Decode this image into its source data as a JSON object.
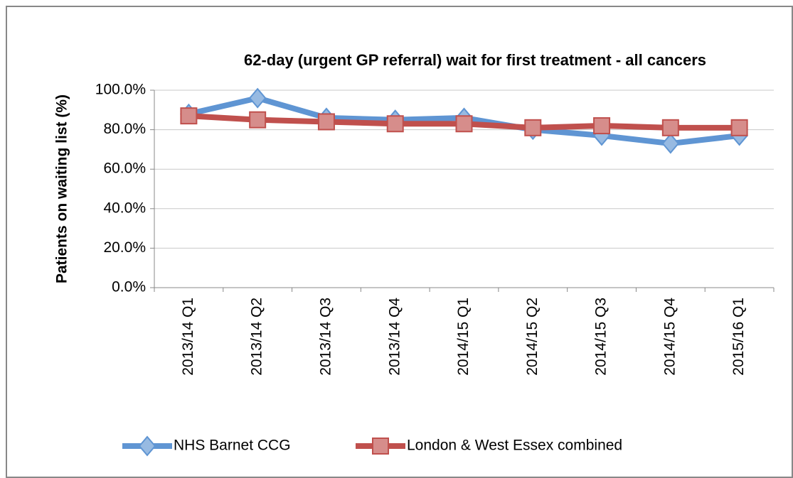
{
  "chart_data": {
    "type": "line",
    "title": "62-day (urgent GP referral) wait for first treatment - all cancers",
    "y_label": "Patients on waiting list (%)",
    "categories": [
      "2013/14 Q1",
      "2013/14 Q2",
      "2013/14 Q3",
      "2013/14 Q4",
      "2014/15 Q1",
      "2014/15 Q2",
      "2014/15 Q3",
      "2014/15 Q4",
      "2015/16 Q1"
    ],
    "series": [
      {
        "name": "NHS Barnet CCG",
        "color": "#5f95d3",
        "marker": "diamond",
        "values": [
          88,
          96,
          86,
          85,
          86,
          80,
          77,
          73,
          77
        ]
      },
      {
        "name": "London & West Essex combined",
        "color": "#c0504d",
        "marker": "square",
        "values": [
          87,
          85,
          84,
          83,
          83,
          81,
          82,
          81,
          81
        ]
      }
    ],
    "ylim": [
      0,
      100
    ],
    "yticks": [
      {
        "value": 0,
        "label": "0.0%"
      },
      {
        "value": 20,
        "label": "20.0%"
      },
      {
        "value": 40,
        "label": "40.0%"
      },
      {
        "value": 60,
        "label": "60.0%"
      },
      {
        "value": 80,
        "label": "80.0%"
      },
      {
        "value": 100,
        "label": "100.0%"
      }
    ],
    "grid": true,
    "legend": "bottom"
  }
}
